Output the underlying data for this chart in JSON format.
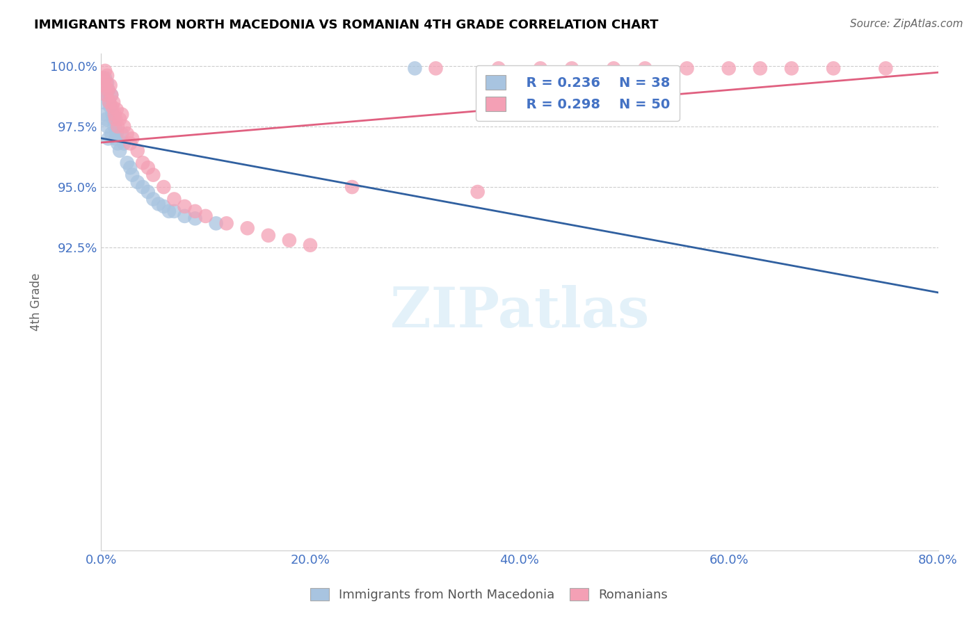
{
  "title": "IMMIGRANTS FROM NORTH MACEDONIA VS ROMANIAN 4TH GRADE CORRELATION CHART",
  "source": "Source: ZipAtlas.com",
  "ylabel": "4th Grade",
  "xlim": [
    0.0,
    0.8
  ],
  "ylim": [
    0.8,
    1.005
  ],
  "legend_blue_r": "R = 0.236",
  "legend_blue_n": "N = 38",
  "legend_pink_r": "R = 0.298",
  "legend_pink_n": "N = 50",
  "blue_color": "#A8C4E0",
  "pink_color": "#F4A0B5",
  "blue_line_color": "#3060A0",
  "pink_line_color": "#E06080",
  "ytick_vals": [
    1.0,
    0.975,
    0.95,
    0.925
  ],
  "ytick_labels": [
    "100.0%",
    "97.5%",
    "95.0%",
    "92.5%"
  ],
  "xtick_vals": [
    0.0,
    0.2,
    0.4,
    0.6,
    0.8
  ],
  "xtick_labels": [
    "0.0%",
    "20.0%",
    "40.0%",
    "60.0%",
    "80.0%"
  ],
  "blue_points_x": [
    0.002,
    0.003,
    0.004,
    0.004,
    0.005,
    0.005,
    0.006,
    0.006,
    0.007,
    0.007,
    0.008,
    0.009,
    0.01,
    0.01,
    0.011,
    0.012,
    0.013,
    0.014,
    0.015,
    0.016,
    0.018,
    0.02,
    0.022,
    0.025,
    0.028,
    0.03,
    0.035,
    0.04,
    0.045,
    0.05,
    0.055,
    0.06,
    0.065,
    0.07,
    0.08,
    0.09,
    0.11,
    0.3
  ],
  "blue_points_y": [
    0.99,
    0.985,
    0.995,
    0.98,
    0.988,
    0.978,
    0.993,
    0.975,
    0.99,
    0.97,
    0.985,
    0.983,
    0.988,
    0.972,
    0.98,
    0.978,
    0.975,
    0.97,
    0.972,
    0.968,
    0.965,
    0.972,
    0.968,
    0.96,
    0.958,
    0.955,
    0.952,
    0.95,
    0.948,
    0.945,
    0.943,
    0.942,
    0.94,
    0.94,
    0.938,
    0.937,
    0.935,
    0.999
  ],
  "pink_points_x": [
    0.002,
    0.003,
    0.004,
    0.005,
    0.005,
    0.006,
    0.007,
    0.008,
    0.009,
    0.01,
    0.011,
    0.012,
    0.013,
    0.014,
    0.015,
    0.016,
    0.018,
    0.02,
    0.022,
    0.025,
    0.028,
    0.03,
    0.035,
    0.04,
    0.045,
    0.05,
    0.06,
    0.07,
    0.08,
    0.09,
    0.32,
    0.38,
    0.42,
    0.45,
    0.49,
    0.52,
    0.56,
    0.6,
    0.63,
    0.66,
    0.7,
    0.75,
    0.1,
    0.12,
    0.14,
    0.16,
    0.18,
    0.2,
    0.24,
    0.36
  ],
  "pink_points_y": [
    0.995,
    0.992,
    0.998,
    0.993,
    0.988,
    0.996,
    0.99,
    0.985,
    0.992,
    0.988,
    0.983,
    0.985,
    0.98,
    0.978,
    0.982,
    0.975,
    0.978,
    0.98,
    0.975,
    0.972,
    0.968,
    0.97,
    0.965,
    0.96,
    0.958,
    0.955,
    0.95,
    0.945,
    0.942,
    0.94,
    0.999,
    0.999,
    0.999,
    0.999,
    0.999,
    0.999,
    0.999,
    0.999,
    0.999,
    0.999,
    0.999,
    0.999,
    0.938,
    0.935,
    0.933,
    0.93,
    0.928,
    0.926,
    0.95,
    0.948
  ]
}
